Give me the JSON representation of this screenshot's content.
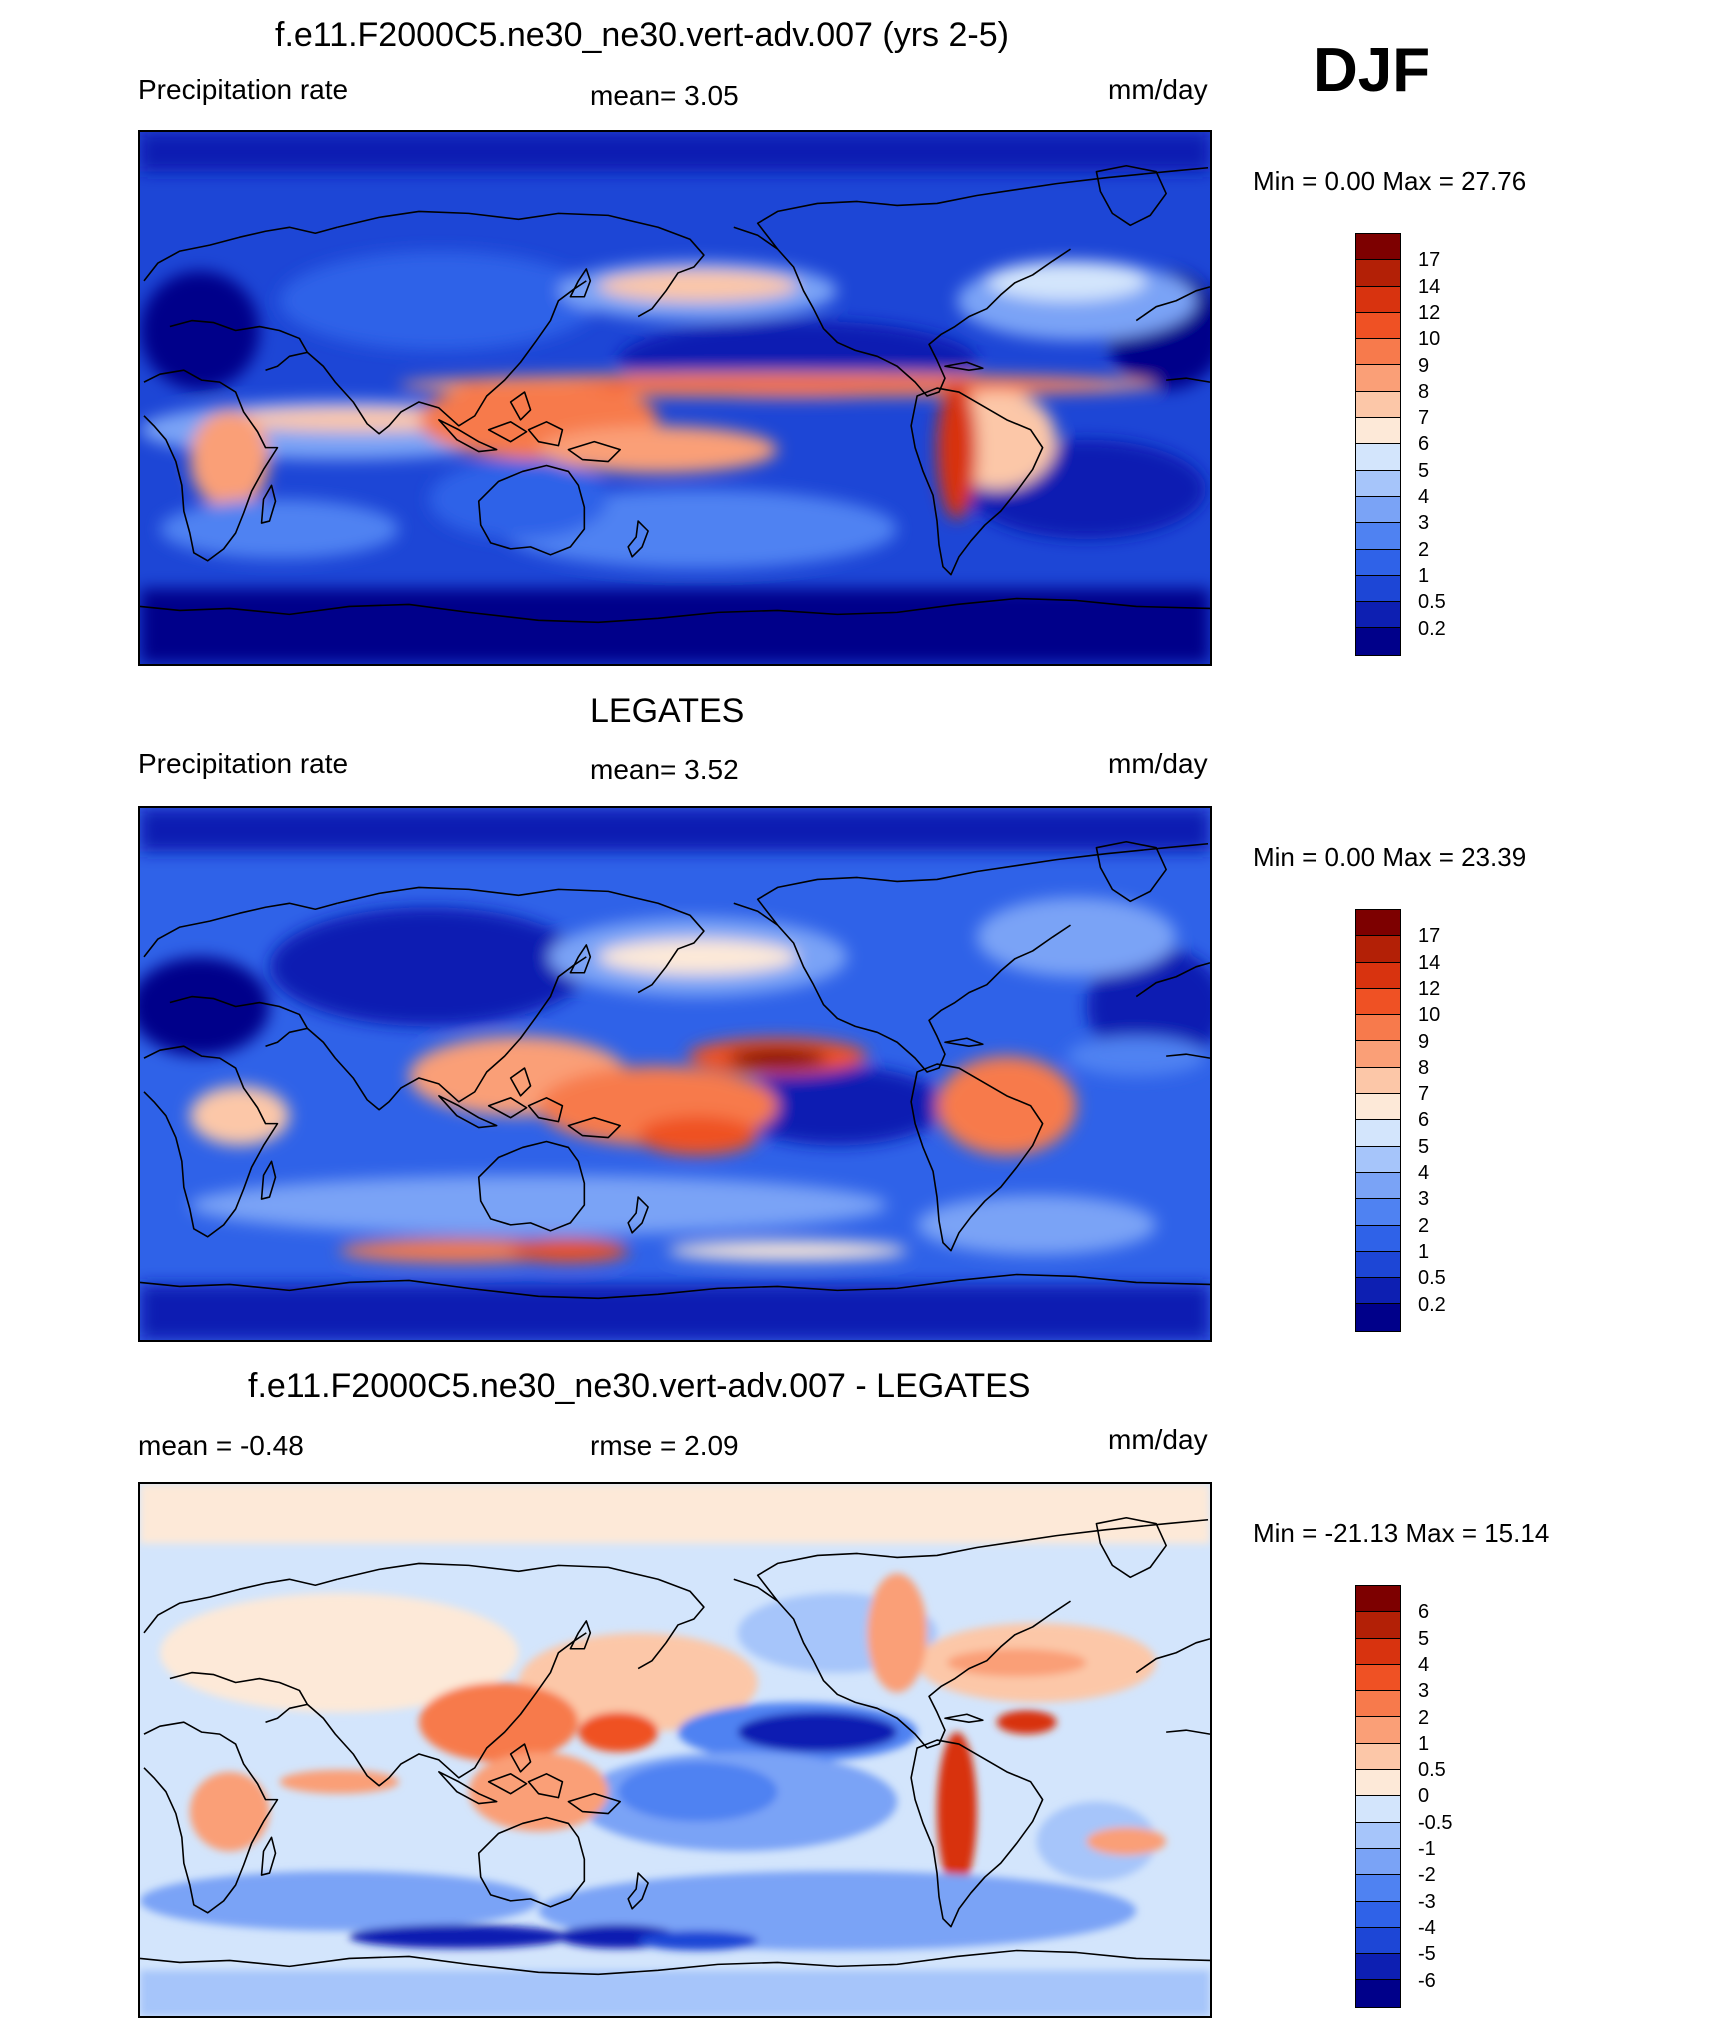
{
  "season": "DJF",
  "colors": {
    "abs_scale": [
      "#00008a",
      "#0d1fb2",
      "#1d46d6",
      "#2f62e8",
      "#4f82f2",
      "#7aa3f6",
      "#a6c5fa",
      "#d3e5fc",
      "#fde9d8",
      "#fcc7a8",
      "#fa9f77",
      "#f77a4c",
      "#ef5124",
      "#d8330f",
      "#b32006",
      "#7d0000"
    ],
    "diff_scale": [
      "#00008a",
      "#0d1fb2",
      "#1d46d6",
      "#2f62e8",
      "#4f82f2",
      "#7aa3f6",
      "#a6c5fa",
      "#d3e5fc",
      "#fde9d8",
      "#fcc7a8",
      "#fa9f77",
      "#f77a4c",
      "#ef5124",
      "#d8330f",
      "#b32006",
      "#7d0000"
    ]
  },
  "panels": [
    {
      "id": "model",
      "title": "f.e11.F2000C5.ne30_ne30.vert-adv.007 (yrs 2-5)",
      "left_label": "Precipitation rate",
      "center_label": "mean=   3.05",
      "units": "mm/day",
      "minmax": "Min =   0.00 Max =  27.76",
      "ticks": [
        "17",
        "14",
        "12",
        "10",
        "9",
        "8",
        "7",
        "6",
        "5",
        "4",
        "3",
        "2",
        "1",
        "0.5",
        "0.2"
      ]
    },
    {
      "id": "obs",
      "title": "LEGATES",
      "left_label": "Precipitation rate",
      "center_label": "mean=   3.52",
      "units": "mm/day",
      "minmax": "Min =   0.00 Max =  23.39",
      "ticks": [
        "17",
        "14",
        "12",
        "10",
        "9",
        "8",
        "7",
        "6",
        "5",
        "4",
        "3",
        "2",
        "1",
        "0.5",
        "0.2"
      ]
    },
    {
      "id": "diff",
      "title": "f.e11.F2000C5.ne30_ne30.vert-adv.007 - LEGATES",
      "left_label": "mean =  -0.48",
      "center_label": "rmse =   2.09",
      "units": "mm/day",
      "minmax": "Min = -21.13 Max =  15.14",
      "ticks": [
        "6",
        "5",
        "4",
        "3",
        "2",
        "1",
        "0.5",
        "0",
        "-0.5",
        "-1",
        "-2",
        "-3",
        "-4",
        "-5",
        "-6"
      ]
    }
  ]
}
